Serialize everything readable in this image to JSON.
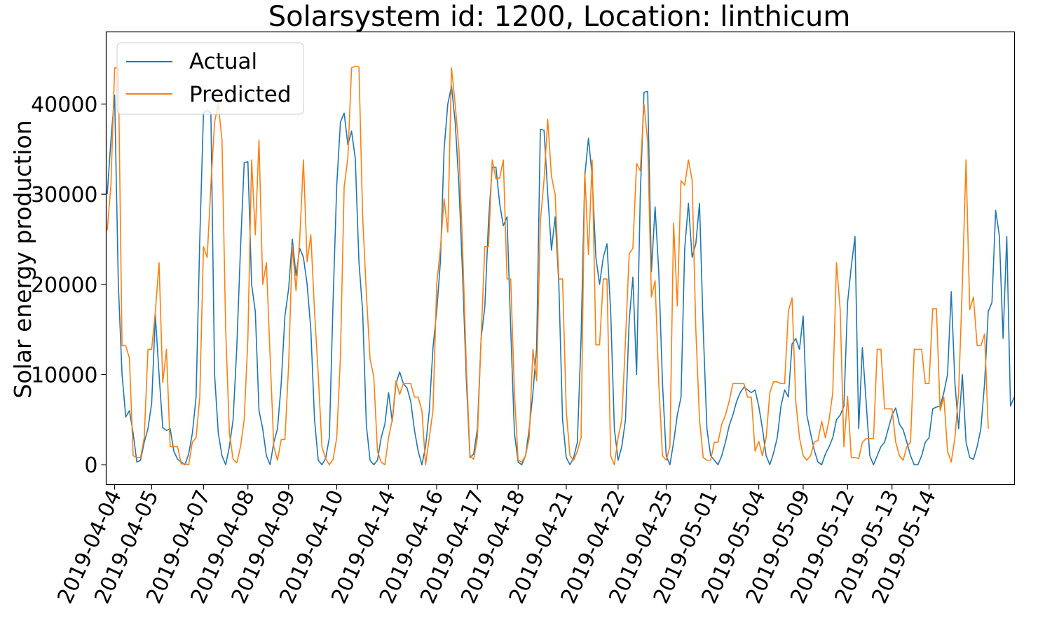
{
  "chart_data": {
    "type": "line",
    "title": "Solarsystem id: 1200, Location: linthicum",
    "xlabel": "",
    "ylabel": "Solar energy production",
    "ylim": [
      -2200,
      48000
    ],
    "yticks": [
      0,
      10000,
      20000,
      30000,
      40000
    ],
    "ytick_labels": [
      "0",
      "10000",
      "20000",
      "30000",
      "40000"
    ],
    "xticks": [
      {
        "index": 2,
        "label": "2019-04-04"
      },
      {
        "index": 12,
        "label": "2019-04-05"
      },
      {
        "index": 26,
        "label": "2019-04-07"
      },
      {
        "index": 38,
        "label": "2019-04-08"
      },
      {
        "index": 49,
        "label": "2019-04-09"
      },
      {
        "index": 62,
        "label": "2019-04-10"
      },
      {
        "index": 76,
        "label": "2019-04-14"
      },
      {
        "index": 89,
        "label": "2019-04-16"
      },
      {
        "index": 100,
        "label": "2019-04-17"
      },
      {
        "index": 111,
        "label": "2019-04-18"
      },
      {
        "index": 124,
        "label": "2019-04-21"
      },
      {
        "index": 138,
        "label": "2019-04-22"
      },
      {
        "index": 151,
        "label": "2019-04-25"
      },
      {
        "index": 163,
        "label": "2019-05-01"
      },
      {
        "index": 176,
        "label": "2019-05-04"
      },
      {
        "index": 188,
        "label": "2019-05-09"
      },
      {
        "index": 200,
        "label": "2019-05-12"
      },
      {
        "index": 212,
        "label": "2019-05-13"
      },
      {
        "index": 222,
        "label": "2019-05-14"
      }
    ],
    "grid": false,
    "legend_position": "top-left",
    "series": [
      {
        "name": "Actual",
        "color": "#1f77b4",
        "values": [
          30000,
          36000,
          41000,
          20000,
          10000,
          5300,
          6000,
          3500,
          300,
          500,
          2500,
          4000,
          6800,
          16600,
          10000,
          4100,
          3800,
          4000,
          1500,
          600,
          300,
          0,
          1200,
          3500,
          7500,
          25000,
          39000,
          39300,
          39000,
          10000,
          3500,
          1000,
          0,
          2000,
          5000,
          13000,
          24000,
          33500,
          33600,
          20000,
          17000,
          6000,
          4000,
          1000,
          0,
          2500,
          4000,
          9000,
          16500,
          19500,
          25000,
          21000,
          24000,
          23000,
          20000,
          15000,
          5000,
          500,
          0,
          700,
          3000,
          18000,
          31000,
          38000,
          39000,
          35500,
          37000,
          34000,
          22500,
          17000,
          4400,
          500,
          0,
          500,
          3000,
          4500,
          8000,
          4800,
          9000,
          10300,
          9000,
          8500,
          7000,
          3800,
          1500,
          0,
          2000,
          6000,
          13000,
          17000,
          22500,
          35000,
          40000,
          42000,
          38000,
          31000,
          21000,
          9500,
          800,
          1200,
          4000,
          14000,
          17500,
          27000,
          33000,
          33000,
          29000,
          26500,
          27500,
          15000,
          3500,
          300,
          0,
          1000,
          4000,
          8000,
          13000,
          37200,
          37100,
          30000,
          23800,
          27500,
          20000,
          5000,
          800,
          0,
          800,
          2500,
          14000,
          32000,
          36200,
          32000,
          23000,
          20000,
          23000,
          24500,
          17000,
          4000,
          500,
          2000,
          5000,
          16000,
          20800,
          10000,
          30000,
          41300,
          41400,
          21400,
          28600,
          21300,
          9000,
          1000,
          0,
          2500,
          5500,
          7500,
          24000,
          29000,
          23000,
          24500,
          29000,
          15000,
          4000,
          1000,
          500,
          0,
          1000,
          2500,
          4300,
          5500,
          7000,
          8000,
          8600,
          8300,
          8000,
          8300,
          6500,
          4000,
          1000,
          0,
          1300,
          3000,
          6500,
          8300,
          7500,
          13400,
          14000,
          12800,
          16500,
          5500,
          3500,
          1600,
          300,
          0,
          1200,
          2000,
          3000,
          5000,
          5500,
          6500,
          18000,
          22000,
          25300,
          4000,
          13000,
          7000,
          1000,
          0,
          1000,
          2000,
          2500,
          4000,
          5500,
          6300,
          4500,
          3900,
          2500,
          1000,
          0,
          0,
          1000,
          2500,
          3000,
          6200,
          6400,
          6500,
          8000,
          10000,
          19200,
          9000,
          4000,
          10000,
          2500,
          800,
          600,
          2000,
          4000,
          9000,
          17000,
          18000,
          28200,
          25400,
          14000,
          25300,
          6500,
          7500
        ]
      },
      {
        "name": "Predicted",
        "color": "#ff7f0e",
        "values": [
          26000,
          31000,
          44000,
          44000,
          13200,
          13200,
          11800,
          1000,
          800,
          800,
          3000,
          12800,
          12800,
          17000,
          22400,
          9100,
          12800,
          2000,
          2000,
          2000,
          100,
          100,
          0,
          2500,
          3000,
          7500,
          24200,
          23000,
          31000,
          38000,
          40000,
          36000,
          15000,
          3500,
          600,
          200,
          2000,
          5000,
          14000,
          33800,
          25500,
          36000,
          20000,
          22400,
          12000,
          2000,
          500,
          2800,
          2800,
          11000,
          24300,
          19300,
          25000,
          33800,
          22500,
          25500,
          17000,
          10000,
          2000,
          700,
          0,
          600,
          3000,
          12000,
          30800,
          34000,
          44000,
          44200,
          44100,
          27500,
          19000,
          11700,
          9800,
          1500,
          300,
          0,
          3000,
          5000,
          9300,
          7800,
          9000,
          9000,
          9000,
          7500,
          7500,
          6000,
          0,
          3000,
          6000,
          20000,
          24000,
          29500,
          25800,
          44000,
          40000,
          35000,
          24000,
          11000,
          1000,
          600,
          3000,
          14000,
          24200,
          24200,
          33800,
          31700,
          31800,
          33800,
          20600,
          20600,
          8000,
          500,
          300,
          1000,
          3000,
          12800,
          9300,
          27000,
          31600,
          38300,
          32000,
          30000,
          20600,
          20600,
          6000,
          1000,
          500,
          1500,
          3000,
          32500,
          23300,
          33800,
          13300,
          13300,
          20600,
          20600,
          1000,
          0,
          3000,
          5000,
          13800,
          23400,
          24000,
          33400,
          32600,
          40000,
          35800,
          18600,
          20400,
          9000,
          1000,
          500,
          2000,
          26800,
          17600,
          31500,
          31000,
          33800,
          31600,
          15000,
          5000,
          800,
          500,
          500,
          2500,
          2500,
          4500,
          5500,
          7000,
          9000,
          9000,
          9000,
          9000,
          7500,
          7500,
          1500,
          2600,
          1000,
          3000,
          8000,
          9200,
          9200,
          9000,
          9000,
          17000,
          18500,
          7000,
          3000,
          1000,
          500,
          1000,
          2500,
          2700,
          4800,
          3000,
          5000,
          8000,
          22400,
          17200,
          2000,
          7600,
          800,
          800,
          700,
          2500,
          2900,
          2900,
          2900,
          12800,
          12800,
          6200,
          6200,
          6200,
          2500,
          1000,
          500,
          2000,
          2500,
          12800,
          12800,
          12800,
          9000,
          9000,
          17300,
          17300,
          6000,
          7500,
          1500,
          300,
          3000,
          8000,
          20000,
          33800,
          17200,
          18600,
          13200,
          13200,
          14500,
          4000
        ]
      }
    ]
  }
}
